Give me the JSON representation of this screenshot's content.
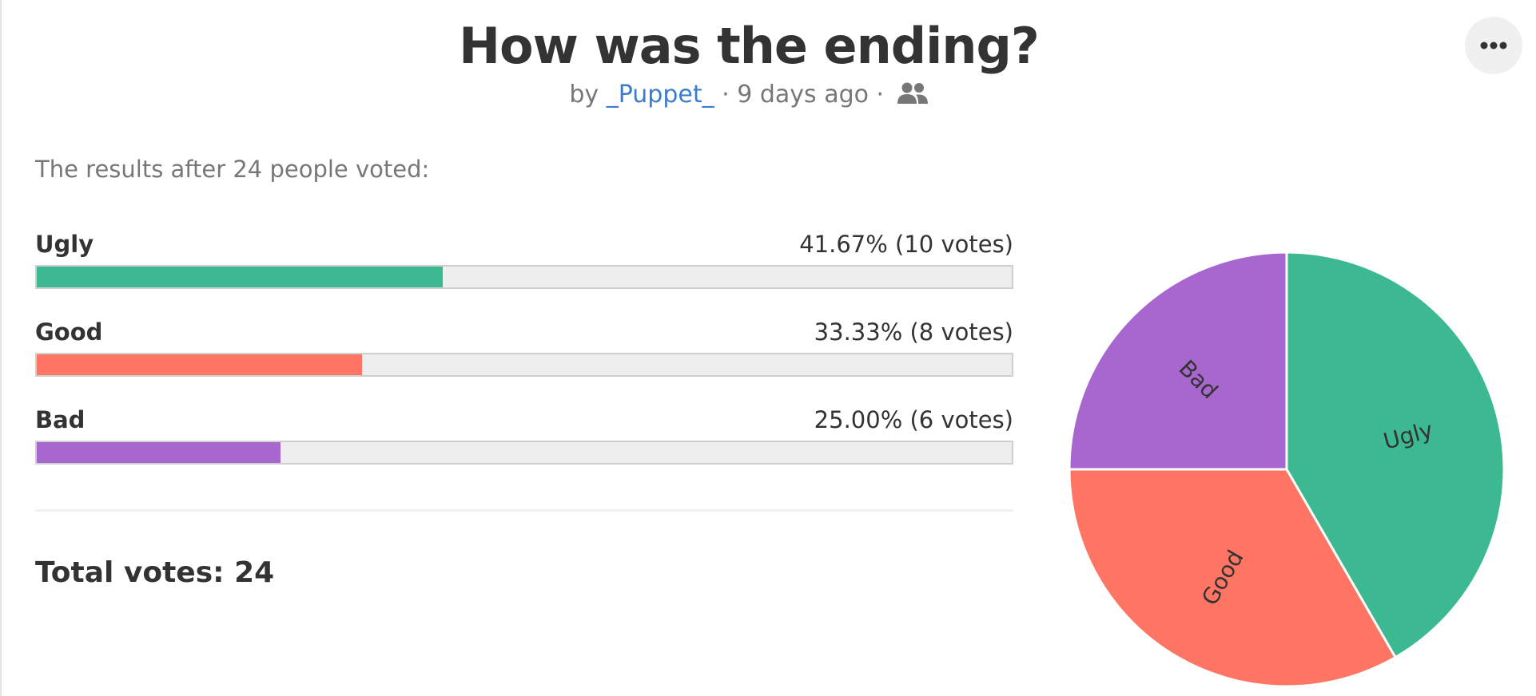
{
  "poll": {
    "title": "How was the ending?",
    "by_prefix": "by",
    "author": "_Puppet_",
    "separator": "·",
    "posted": "9 days ago",
    "intro": "The results after 24 people voted:",
    "total": "Total votes: 24"
  },
  "icons": {
    "menu": "more-horizontal-icon",
    "audience": "users-icon"
  },
  "colors": {
    "Ugly": "#3db991",
    "Good": "#ff7563",
    "Bad": "#a866cf"
  },
  "options": [
    {
      "label": "Ugly",
      "result": "41.67% (10 votes)",
      "percent": 41.67,
      "color": "#3db991"
    },
    {
      "label": "Good",
      "result": "33.33% (8 votes)",
      "percent": 33.33,
      "color": "#ff7563"
    },
    {
      "label": "Bad",
      "result": "25.00% (6 votes)",
      "percent": 25.0,
      "color": "#a866cf"
    }
  ],
  "chart_data": {
    "type": "pie",
    "categories": [
      "Ugly",
      "Good",
      "Bad"
    ],
    "values": [
      10,
      8,
      6
    ],
    "colors": [
      "#3db991",
      "#ff7563",
      "#a866cf"
    ],
    "start_angle": "12 o'clock",
    "direction": "clockwise"
  }
}
